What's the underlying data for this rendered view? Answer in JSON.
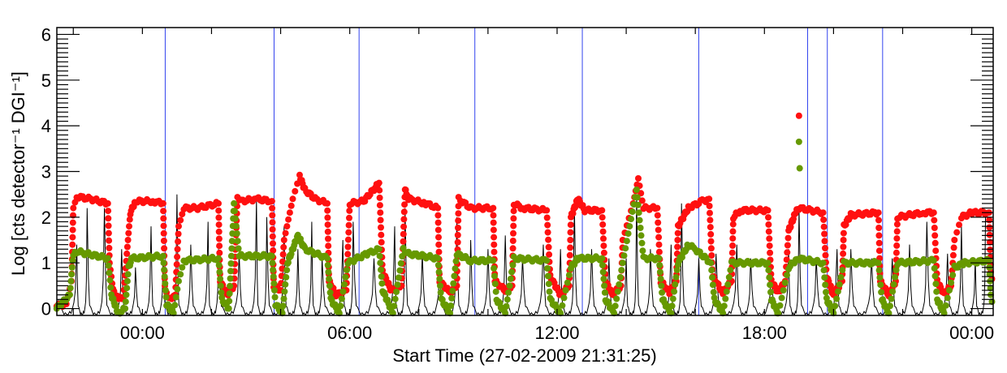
{
  "chart_data": {
    "type": "scatter",
    "title": "",
    "xlabel": "Start Time (27-02-2009 21:31:25)",
    "ylabel": "Log [cts detector⁻¹ DGI⁻¹]",
    "x_units": "hours relative to 00:00 (28-02-2009)",
    "xlim": [
      -2.476,
      24.62
    ],
    "ylim": [
      -0.15,
      6.15
    ],
    "x_ticks": [
      {
        "value": 0,
        "label": "00:00"
      },
      {
        "value": 6,
        "label": "06:00"
      },
      {
        "value": 12,
        "label": "12:00"
      },
      {
        "value": 18,
        "label": "18:00"
      },
      {
        "value": 24,
        "label": "00:00"
      }
    ],
    "y_ticks": [
      {
        "value": 0,
        "label": "0"
      },
      {
        "value": 1,
        "label": "1"
      },
      {
        "value": 2,
        "label": "2"
      },
      {
        "value": 3,
        "label": "3"
      },
      {
        "value": 4,
        "label": "4"
      },
      {
        "value": 5,
        "label": "5"
      },
      {
        "value": 6,
        "label": "6"
      }
    ],
    "grid": false,
    "vertical_lines": {
      "color": "#3344ee",
      "x": [
        0.66,
        3.81,
        6.27,
        9.62,
        12.73,
        16.1,
        19.25,
        19.82,
        21.42
      ]
    },
    "series": [
      {
        "color": "#ff1010",
        "style": "dots",
        "points": [
          [
            -2.48,
            0.05
          ],
          [
            -2.2,
            0.1
          ],
          [
            -2.05,
            0.6
          ],
          [
            -2.0,
            2.2
          ],
          [
            -1.9,
            2.45
          ],
          [
            -1.5,
            2.4
          ],
          [
            -1.0,
            2.3
          ],
          [
            -0.95,
            1.0
          ],
          [
            -0.85,
            0.4
          ],
          [
            -0.7,
            0.2
          ],
          [
            -0.55,
            0.25
          ],
          [
            -0.45,
            1.2
          ],
          [
            -0.35,
            2.1
          ],
          [
            -0.2,
            2.35
          ],
          [
            0.3,
            2.35
          ],
          [
            0.6,
            2.3
          ],
          [
            0.65,
            0.5
          ],
          [
            0.75,
            0.2
          ],
          [
            0.95,
            0.3
          ],
          [
            1.05,
            1.8
          ],
          [
            1.2,
            2.2
          ],
          [
            1.6,
            2.2
          ],
          [
            2.2,
            2.3
          ],
          [
            2.25,
            0.6
          ],
          [
            2.45,
            0.3
          ],
          [
            2.65,
            0.5
          ],
          [
            2.75,
            2.4
          ],
          [
            2.85,
            2.35
          ],
          [
            3.3,
            2.4
          ],
          [
            3.75,
            2.35
          ],
          [
            3.8,
            0.5
          ],
          [
            4.0,
            0.4
          ],
          [
            4.1,
            1.5
          ],
          [
            4.35,
            2.4
          ],
          [
            4.55,
            2.9
          ],
          [
            4.7,
            2.6
          ],
          [
            5.0,
            2.4
          ],
          [
            5.35,
            2.3
          ],
          [
            5.4,
            0.6
          ],
          [
            5.6,
            0.3
          ],
          [
            5.9,
            0.4
          ],
          [
            6.0,
            2.3
          ],
          [
            6.4,
            2.35
          ],
          [
            6.85,
            2.75
          ],
          [
            6.95,
            0.8
          ],
          [
            7.2,
            0.4
          ],
          [
            7.5,
            0.5
          ],
          [
            7.6,
            2.6
          ],
          [
            7.7,
            2.4
          ],
          [
            8.2,
            2.3
          ],
          [
            8.55,
            2.2
          ],
          [
            8.6,
            0.6
          ],
          [
            8.9,
            0.35
          ],
          [
            9.1,
            0.5
          ],
          [
            9.15,
            2.4
          ],
          [
            9.5,
            2.2
          ],
          [
            10.15,
            2.2
          ],
          [
            10.2,
            0.6
          ],
          [
            10.5,
            0.4
          ],
          [
            10.7,
            0.5
          ],
          [
            10.75,
            2.3
          ],
          [
            11.0,
            2.2
          ],
          [
            11.7,
            2.15
          ],
          [
            11.8,
            0.7
          ],
          [
            12.1,
            0.3
          ],
          [
            12.35,
            0.5
          ],
          [
            12.4,
            2.0
          ],
          [
            12.6,
            2.4
          ],
          [
            12.8,
            2.15
          ],
          [
            13.3,
            2.15
          ],
          [
            13.4,
            0.6
          ],
          [
            13.6,
            0.3
          ],
          [
            13.85,
            0.5
          ],
          [
            13.9,
            1.5
          ],
          [
            14.2,
            2.3
          ],
          [
            14.35,
            2.85
          ],
          [
            14.5,
            2.2
          ],
          [
            14.9,
            2.2
          ],
          [
            15.0,
            0.6
          ],
          [
            15.25,
            0.35
          ],
          [
            15.45,
            0.6
          ],
          [
            15.5,
            1.8
          ],
          [
            15.8,
            2.2
          ],
          [
            16.2,
            2.35
          ],
          [
            16.4,
            2.4
          ],
          [
            16.5,
            0.7
          ],
          [
            16.8,
            0.35
          ],
          [
            17.05,
            0.6
          ],
          [
            17.1,
            2.0
          ],
          [
            17.3,
            2.15
          ],
          [
            18.1,
            2.15
          ],
          [
            18.2,
            0.6
          ],
          [
            18.4,
            0.35
          ],
          [
            18.6,
            0.6
          ],
          [
            18.7,
            1.7
          ],
          [
            18.9,
            2.1
          ],
          [
            19.0,
            2.2
          ],
          [
            19.7,
            2.1
          ],
          [
            19.8,
            0.7
          ],
          [
            20.0,
            0.3
          ],
          [
            20.25,
            0.6
          ],
          [
            20.3,
            1.8
          ],
          [
            20.5,
            2.05
          ],
          [
            21.3,
            2.1
          ],
          [
            21.35,
            0.6
          ],
          [
            21.6,
            0.3
          ],
          [
            21.8,
            0.6
          ],
          [
            21.85,
            2.0
          ],
          [
            22.6,
            2.1
          ],
          [
            22.9,
            2.1
          ],
          [
            23.0,
            0.6
          ],
          [
            23.2,
            0.3
          ],
          [
            23.4,
            0.5
          ],
          [
            23.5,
            1.5
          ],
          [
            23.7,
            2.0
          ],
          [
            24.0,
            2.1
          ],
          [
            24.5,
            2.1
          ],
          [
            24.55,
            0.8
          ],
          [
            24.62,
            0.5
          ]
        ],
        "isolated_points": [
          [
            19.0,
            4.22
          ]
        ]
      },
      {
        "color": "#669900",
        "style": "dots",
        "points": [
          [
            -2.48,
            0.0
          ],
          [
            -2.1,
            0.3
          ],
          [
            -2.0,
            1.2
          ],
          [
            -1.9,
            1.25
          ],
          [
            -1.0,
            1.1
          ],
          [
            -0.9,
            0.3
          ],
          [
            -0.7,
            -0.1
          ],
          [
            -0.5,
            0.0
          ],
          [
            -0.4,
            0.9
          ],
          [
            -0.3,
            1.1
          ],
          [
            0.6,
            1.15
          ],
          [
            0.7,
            0.1
          ],
          [
            0.9,
            -0.1
          ],
          [
            1.05,
            0.6
          ],
          [
            1.2,
            1.05
          ],
          [
            2.2,
            1.1
          ],
          [
            2.3,
            0.2
          ],
          [
            2.5,
            0.0
          ],
          [
            2.65,
            2.3
          ],
          [
            2.8,
            1.15
          ],
          [
            3.75,
            1.15
          ],
          [
            3.85,
            0.1
          ],
          [
            4.05,
            -0.1
          ],
          [
            4.2,
            1.0
          ],
          [
            4.5,
            1.6
          ],
          [
            4.7,
            1.3
          ],
          [
            5.35,
            1.1
          ],
          [
            5.45,
            0.2
          ],
          [
            5.7,
            -0.1
          ],
          [
            5.95,
            1.0
          ],
          [
            6.5,
            1.2
          ],
          [
            6.85,
            1.3
          ],
          [
            6.95,
            0.4
          ],
          [
            7.25,
            -0.1
          ],
          [
            7.55,
            1.3
          ],
          [
            7.7,
            1.2
          ],
          [
            8.55,
            1.1
          ],
          [
            8.65,
            0.2
          ],
          [
            8.9,
            -0.1
          ],
          [
            9.1,
            1.2
          ],
          [
            9.5,
            1.05
          ],
          [
            10.15,
            1.05
          ],
          [
            10.25,
            0.2
          ],
          [
            10.5,
            -0.1
          ],
          [
            10.75,
            1.1
          ],
          [
            11.7,
            1.05
          ],
          [
            11.8,
            0.2
          ],
          [
            12.1,
            -0.1
          ],
          [
            12.4,
            0.9
          ],
          [
            12.6,
            1.1
          ],
          [
            13.3,
            1.1
          ],
          [
            13.4,
            0.2
          ],
          [
            13.65,
            -0.1
          ],
          [
            13.9,
            1.0
          ],
          [
            14.3,
            2.6
          ],
          [
            14.5,
            1.1
          ],
          [
            14.95,
            1.1
          ],
          [
            15.05,
            0.2
          ],
          [
            15.3,
            -0.1
          ],
          [
            15.5,
            1.0
          ],
          [
            15.8,
            1.4
          ],
          [
            16.0,
            1.3
          ],
          [
            16.45,
            1.0
          ],
          [
            16.55,
            0.2
          ],
          [
            16.8,
            -0.1
          ],
          [
            17.05,
            1.0
          ],
          [
            18.1,
            1.0
          ],
          [
            18.2,
            0.2
          ],
          [
            18.4,
            -0.1
          ],
          [
            18.7,
            0.9
          ],
          [
            18.95,
            1.1
          ],
          [
            19.7,
            1.0
          ],
          [
            19.8,
            0.2
          ],
          [
            20.0,
            -0.1
          ],
          [
            20.3,
            1.0
          ],
          [
            21.3,
            1.0
          ],
          [
            21.4,
            0.2
          ],
          [
            21.6,
            -0.1
          ],
          [
            21.85,
            1.0
          ],
          [
            22.9,
            1.05
          ],
          [
            23.0,
            0.2
          ],
          [
            23.2,
            -0.1
          ],
          [
            23.5,
            0.9
          ],
          [
            23.8,
            1.0
          ],
          [
            24.5,
            1.05
          ],
          [
            24.55,
            0.3
          ],
          [
            24.62,
            0.0
          ]
        ],
        "isolated_points": [
          [
            19.0,
            3.65
          ],
          [
            19.02,
            3.07
          ]
        ]
      },
      {
        "color": "#000000",
        "style": "line",
        "peaks": [
          [
            -1.9,
            1.4
          ],
          [
            -1.6,
            2.2
          ],
          [
            -1.1,
            2.2
          ],
          [
            -0.6,
            1.3
          ],
          [
            -0.2,
            0.9
          ],
          [
            0.25,
            1.8
          ],
          [
            0.6,
            1.1
          ],
          [
            1.0,
            2.5
          ],
          [
            1.4,
            1.4
          ],
          [
            1.9,
            1.9
          ],
          [
            2.2,
            1.3
          ],
          [
            2.8,
            1.2
          ],
          [
            3.3,
            2.4
          ],
          [
            3.6,
            2.0
          ],
          [
            4.1,
            1.8
          ],
          [
            4.5,
            1.3
          ],
          [
            4.9,
            1.9
          ],
          [
            5.2,
            1.1
          ],
          [
            5.8,
            1.5
          ],
          [
            6.1,
            1.9
          ],
          [
            6.7,
            1.1
          ],
          [
            7.3,
            1.8
          ],
          [
            7.6,
            2.2
          ],
          [
            8.1,
            1.2
          ],
          [
            8.6,
            1.0
          ],
          [
            9.1,
            2.0
          ],
          [
            9.5,
            1.5
          ],
          [
            10.0,
            1.3
          ],
          [
            10.5,
            1.6
          ],
          [
            11.0,
            1.1
          ],
          [
            11.6,
            1.4
          ],
          [
            12.1,
            1.3
          ],
          [
            12.5,
            2.2
          ],
          [
            13.0,
            1.3
          ],
          [
            13.5,
            1.1
          ],
          [
            14.0,
            1.1
          ],
          [
            14.3,
            2.5
          ],
          [
            14.7,
            1.3
          ],
          [
            15.3,
            1.4
          ],
          [
            15.6,
            2.3
          ],
          [
            16.1,
            1.1
          ],
          [
            16.6,
            1.2
          ],
          [
            17.2,
            1.4
          ],
          [
            17.6,
            1.1
          ],
          [
            18.2,
            0.9
          ],
          [
            18.7,
            1.3
          ],
          [
            19.0,
            2.2
          ],
          [
            19.5,
            1.1
          ],
          [
            20.1,
            1.3
          ],
          [
            20.5,
            1.3
          ],
          [
            21.1,
            1.1
          ],
          [
            21.7,
            1.1
          ],
          [
            22.2,
            1.4
          ],
          [
            22.7,
            1.9
          ],
          [
            23.3,
            1.2
          ],
          [
            23.7,
            1.8
          ],
          [
            24.1,
            1.1
          ],
          [
            24.4,
            2.1
          ]
        ]
      }
    ]
  }
}
